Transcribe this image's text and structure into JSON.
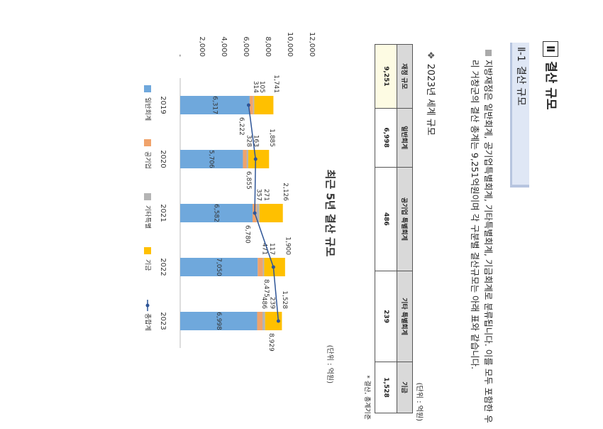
{
  "header": {
    "number": "Ⅱ",
    "title": "결산 규모"
  },
  "section": {
    "number": "Ⅱ-1",
    "title": "결산 규모"
  },
  "paragraph": "지방재정은 일반회계, 공기업특별회계, 기타특별회계, 기금회계로 분류됩니다. 이를 모두 포함한 우리 거창군의 결산 총계는 9,251억원이며 각 구분별 결산규모는 아래 표와 같습니다.",
  "subheading": "2023년 세계 규모",
  "table_unit": "(단위 : 억원)",
  "table": {
    "headers": [
      "재정 규모",
      "일반회계",
      "공기업 특별회계",
      "기타 특별회계",
      "기금"
    ],
    "rows": [
      [
        "9,251",
        "6,998",
        "486",
        "239",
        "1,528"
      ]
    ]
  },
  "table_note": "* 결산, 총계기준",
  "chart_data": {
    "type": "bar",
    "stacked": true,
    "title": "최근 5년 결산 규모",
    "unit": "(단위 : 억원)",
    "categories": [
      "2019",
      "2020",
      "2021",
      "2022",
      "2023"
    ],
    "ylim": [
      0,
      12000
    ],
    "yticks": [
      {
        "value": 0,
        "label": "-"
      },
      {
        "value": 2000,
        "label": "2,000"
      },
      {
        "value": 4000,
        "label": "4,000"
      },
      {
        "value": 6000,
        "label": "6,000"
      },
      {
        "value": 8000,
        "label": "8,000"
      },
      {
        "value": 10000,
        "label": "10,000"
      },
      {
        "value": 12000,
        "label": "12,000"
      }
    ],
    "grid": false,
    "series": [
      {
        "name": "일반회계",
        "color": "#6fa8dc",
        "values": [
          6317,
          5706,
          6582,
          7050,
          6998
        ],
        "value_labels": [
          "6,317",
          "5,706",
          "6,582",
          "7,050",
          "6,998"
        ]
      },
      {
        "name": "공기업",
        "color": "#f0a36b",
        "values": [
          314,
          328,
          357,
          471,
          486
        ],
        "value_labels": [
          "314",
          "328",
          "357",
          "471",
          "486"
        ]
      },
      {
        "name": "기타특별",
        "color": "#b4b4b4",
        "values": [
          105,
          163,
          271,
          117,
          239
        ],
        "value_labels": [
          "105",
          "163",
          "271",
          "117",
          "239"
        ]
      },
      {
        "name": "기금",
        "color": "#ffc000",
        "values": [
          1741,
          1885,
          2126,
          1900,
          1528
        ],
        "value_labels": [
          "1,741",
          "1,885",
          "2,126",
          "1,900",
          "1,528"
        ]
      },
      {
        "name": "총합계",
        "color": "#2e5597",
        "type": "line",
        "values": [
          6222,
          6855,
          6780,
          8475,
          8929
        ],
        "value_labels": [
          "6,222",
          "6,855",
          "6,780",
          "8,475",
          "8,929"
        ]
      }
    ]
  }
}
